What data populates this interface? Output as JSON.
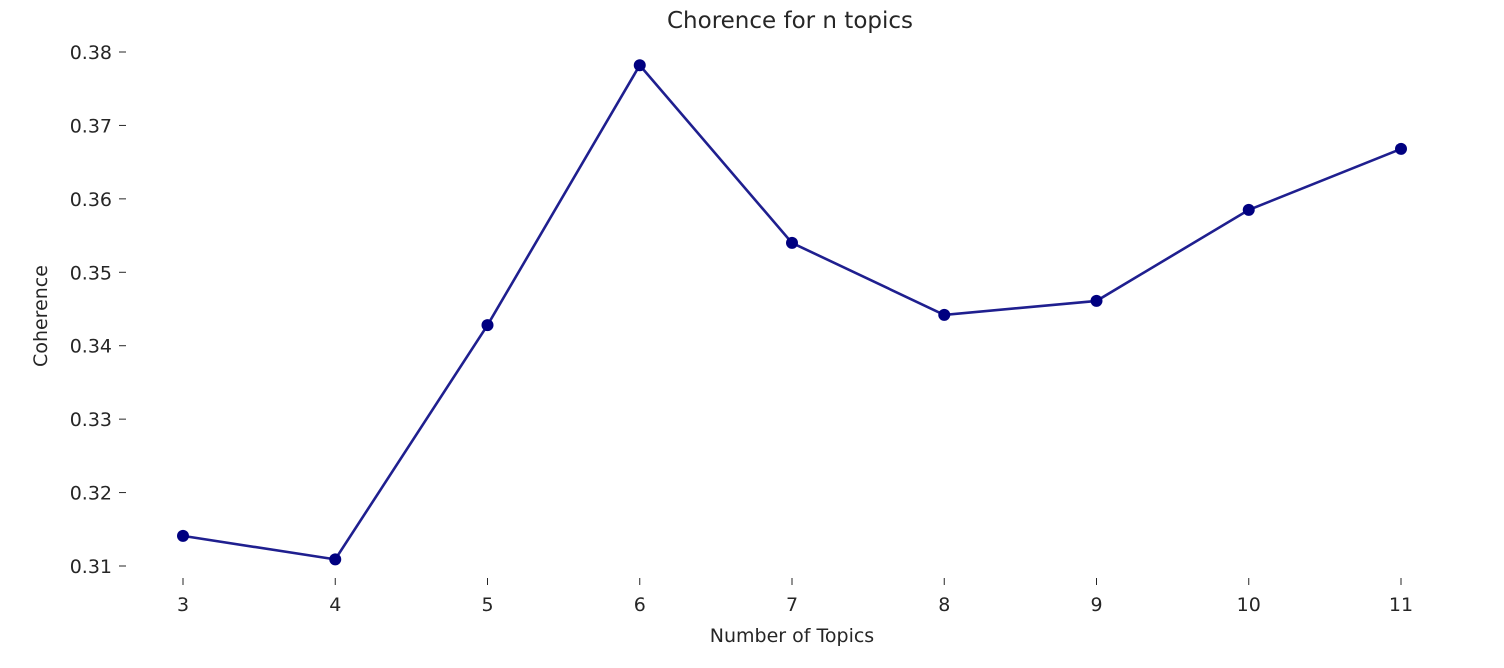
{
  "chart_data": {
    "type": "line",
    "title": "Chorence for n topics",
    "xlabel": "Number of Topics",
    "ylabel": "Coherence",
    "x": [
      3,
      4,
      5,
      6,
      7,
      8,
      9,
      10,
      11
    ],
    "x_tick_labels": [
      "3",
      "4",
      "5",
      "6",
      "7",
      "8",
      "9",
      "10",
      "11"
    ],
    "series": [
      {
        "values": [
          0.3141,
          0.3109,
          0.3428,
          0.3782,
          0.354,
          0.3442,
          0.3461,
          0.3585,
          0.3668
        ]
      }
    ],
    "y_ticks": [
      0.31,
      0.32,
      0.33,
      0.34,
      0.35,
      0.36,
      0.37,
      0.38
    ],
    "y_tick_labels": [
      "0.31",
      "0.32",
      "0.33",
      "0.34",
      "0.35",
      "0.36",
      "0.37",
      "0.38"
    ],
    "xlim": [
      3,
      11
    ],
    "ylim": [
      0.31,
      0.38
    ],
    "grid": false,
    "legend": "none",
    "line_color": "#1f1f8f",
    "marker_color": "#000080",
    "marker": "circle"
  }
}
